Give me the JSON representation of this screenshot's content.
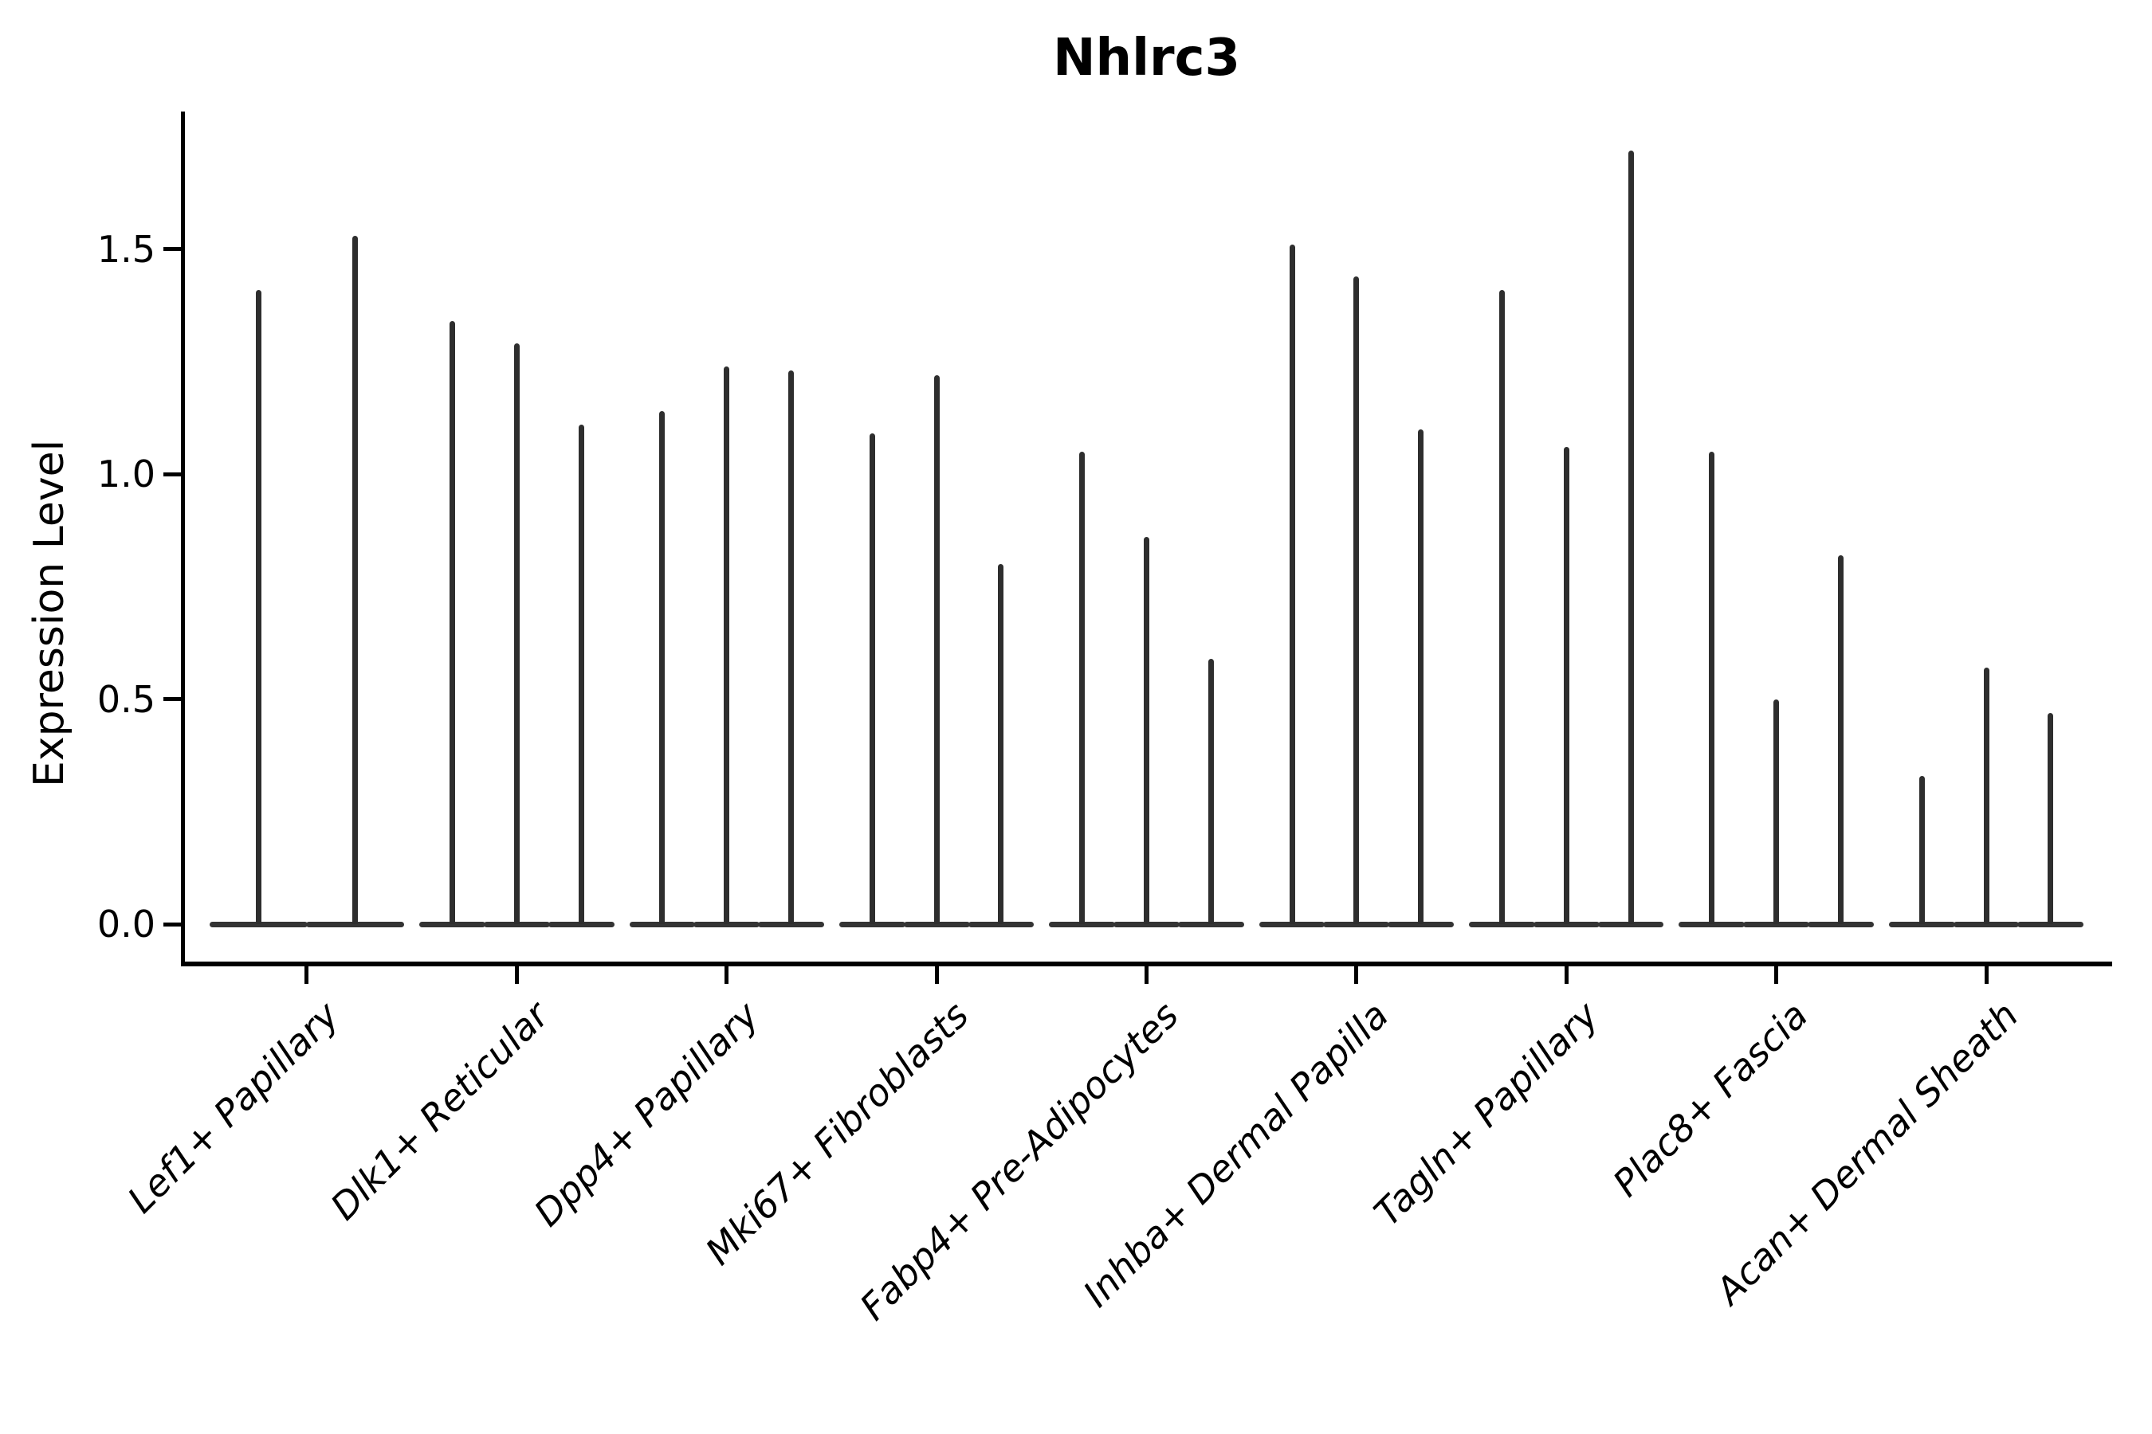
{
  "figure": {
    "title": "Nhlrc3"
  },
  "colors": {
    "background": "#ffffff",
    "axis": "#000000",
    "text": "#000000",
    "violin_spike": "#2e2e2e",
    "violin_body": "#343434"
  },
  "chart_data": {
    "type": "violin",
    "title": "Nhlrc3",
    "xlabel": "",
    "ylabel": "Expression Level",
    "grid": false,
    "legend_position": "none",
    "ylim": [
      0,
      1.81
    ],
    "yticks": {
      "values": [
        0.0,
        0.5,
        1.0,
        1.5
      ],
      "labels": [
        "0.0",
        "0.5",
        "1.0",
        "1.5"
      ]
    },
    "categories": [
      "Lef1+ Papillary",
      "Dlk1+ Reticular",
      "Dpp4+ Papillary",
      "Mki67+ Fibroblasts",
      "Fabp4+ Pre-Adipocytes",
      "Inhba+ Dermal Papilla",
      "Tagln+ Papillary",
      "Plac8+ Fascia",
      "Acan+ Dermal Sheath"
    ],
    "groups": [
      {
        "category": "Lef1+ Papillary",
        "violin_max": [
          1.41,
          1.53
        ]
      },
      {
        "category": "Dlk1+ Reticular",
        "violin_max": [
          1.34,
          1.29,
          1.11
        ]
      },
      {
        "category": "Dpp4+ Papillary",
        "violin_max": [
          1.14,
          1.24,
          1.23
        ]
      },
      {
        "category": "Mki67+ Fibroblasts",
        "violin_max": [
          1.09,
          1.22,
          0.8
        ]
      },
      {
        "category": "Fabp4+ Pre-Adipocytes",
        "violin_max": [
          1.05,
          0.86,
          0.59
        ]
      },
      {
        "category": "Inhba+ Dermal Papilla",
        "violin_max": [
          1.51,
          1.44,
          1.1
        ]
      },
      {
        "category": "Tagln+ Papillary",
        "violin_max": [
          1.41,
          1.06,
          1.72
        ]
      },
      {
        "category": "Plac8+ Fascia",
        "violin_max": [
          1.05,
          0.5,
          0.82
        ]
      },
      {
        "category": "Acan+ Dermal Sheath",
        "violin_max": [
          0.33,
          0.57,
          0.47
        ]
      }
    ],
    "baseline_value": 0.0
  }
}
